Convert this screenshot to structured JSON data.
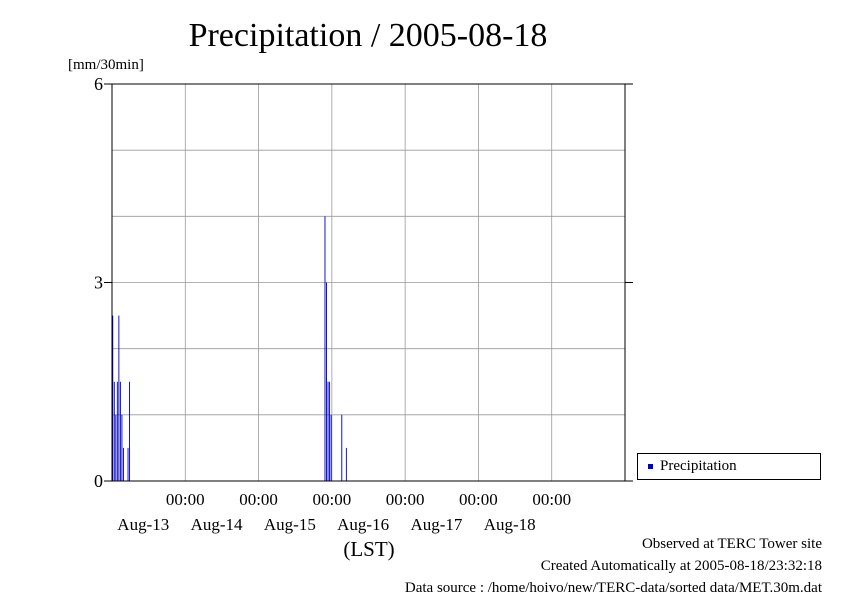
{
  "chart_data": {
    "type": "bar",
    "title": "Precipitation / 2005-08-18",
    "ylabel": "[mm/30min]",
    "xlabel": "(LST)",
    "ylim": [
      0,
      6
    ],
    "yticks": [
      0,
      3,
      6
    ],
    "xlim": [
      "2005-08-12 00:00",
      "2005-08-18 24:00"
    ],
    "xtick_time_label": "00:00",
    "xtick_date_labels": [
      "Aug-13",
      "Aug-14",
      "Aug-15",
      "Aug-16",
      "Aug-17",
      "Aug-18"
    ],
    "grid": true,
    "legend_position": "right",
    "series": [
      {
        "name": "Precipitation",
        "color": "#0000cc",
        "points": [
          [
            "2005-08-12 00:00",
            2.5
          ],
          [
            "2005-08-12 00:30",
            1.5
          ],
          [
            "2005-08-12 01:00",
            1.0
          ],
          [
            "2005-08-12 01:30",
            1.5
          ],
          [
            "2005-08-12 02:00",
            2.5
          ],
          [
            "2005-08-12 02:30",
            1.5
          ],
          [
            "2005-08-12 03:00",
            1.0
          ],
          [
            "2005-08-12 03:30",
            0.5
          ],
          [
            "2005-08-12 05:00",
            0.5
          ],
          [
            "2005-08-12 05:30",
            1.5
          ],
          [
            "2005-08-14 21:30",
            4.0
          ],
          [
            "2005-08-14 22:00",
            3.0
          ],
          [
            "2005-08-14 22:30",
            1.5
          ],
          [
            "2005-08-14 23:00",
            1.5
          ],
          [
            "2005-08-14 23:30",
            1.0
          ],
          [
            "2005-08-15 03:00",
            1.0
          ],
          [
            "2005-08-15 04:30",
            0.5
          ]
        ]
      }
    ]
  },
  "footer": {
    "observed": "Observed at TERC Tower site",
    "created": "Created Automatically at 2005-08-18/23:32:18",
    "source": "Data source : /home/hoivo/new/TERC-data/sorted  data/MET.30m.dat"
  }
}
